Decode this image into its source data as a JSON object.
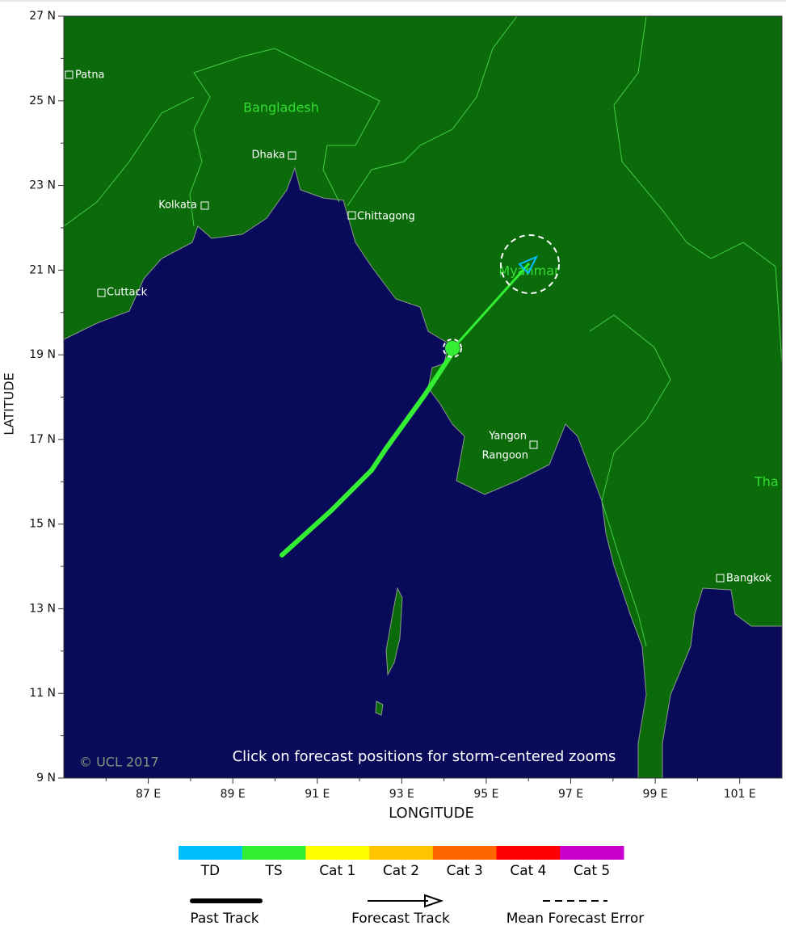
{
  "map": {
    "xlim": [
      85,
      102
    ],
    "ylim": [
      9,
      27
    ],
    "xticks": [
      {
        "value": 87,
        "label": "87 E"
      },
      {
        "value": 89,
        "label": "89 E"
      },
      {
        "value": 91,
        "label": "91 E"
      },
      {
        "value": 93,
        "label": "93 E"
      },
      {
        "value": 95,
        "label": "95 E"
      },
      {
        "value": 97,
        "label": "97 E"
      },
      {
        "value": 99,
        "label": "99 E"
      },
      {
        "value": 101,
        "label": "101 E"
      }
    ],
    "yticks": [
      {
        "value": 9,
        "label": "9 N"
      },
      {
        "value": 11,
        "label": "11 N"
      },
      {
        "value": 13,
        "label": "13 N"
      },
      {
        "value": 15,
        "label": "15 N"
      },
      {
        "value": 17,
        "label": "17 N"
      },
      {
        "value": 19,
        "label": "19 N"
      },
      {
        "value": 21,
        "label": "21 N"
      },
      {
        "value": 23,
        "label": "23 N"
      },
      {
        "value": 25,
        "label": "25 N"
      },
      {
        "value": 27,
        "label": "27 N"
      }
    ],
    "xlabel": "LONGITUDE",
    "ylabel": "LATITUDE",
    "countries": [
      "Bangladesh",
      "Myanmar",
      "Tha"
    ],
    "cities": [
      "Patna",
      "Dhaka",
      "Kolkata",
      "Chittagong",
      "Cuttack",
      "Yangon",
      "Rangoon",
      "Bangkok"
    ],
    "copyright": "© UCL 2017",
    "note": "Click on forecast positions for storm-centered zooms",
    "categories": [
      {
        "name": "TD",
        "color": "#00bfff"
      },
      {
        "name": "TS",
        "color": "#33ee33"
      },
      {
        "name": "Cat 1",
        "color": "#ffff00"
      },
      {
        "name": "Cat 2",
        "color": "#ffc400"
      },
      {
        "name": "Cat 3",
        "color": "#ff6600"
      },
      {
        "name": "Cat 4",
        "color": "#ff0000"
      },
      {
        "name": "Cat 5",
        "color": "#cc00cc"
      }
    ],
    "legend": [
      "Past Track",
      "Forecast Track",
      "Mean Forecast Error"
    ]
  }
}
